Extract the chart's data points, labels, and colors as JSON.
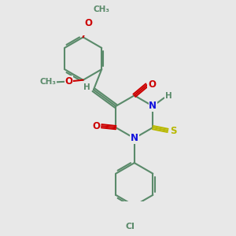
{
  "bg_color": "#e8e8e8",
  "bond_color": "#5a8a6a",
  "bond_width": 1.5,
  "atom_colors": {
    "N": "#1010dd",
    "O": "#cc0000",
    "S": "#b8b800",
    "Cl": "#5a8a6a",
    "H": "#5a8a6a",
    "C": "#5a8a6a"
  },
  "font_size": 8.5,
  "small_font": 7.5
}
